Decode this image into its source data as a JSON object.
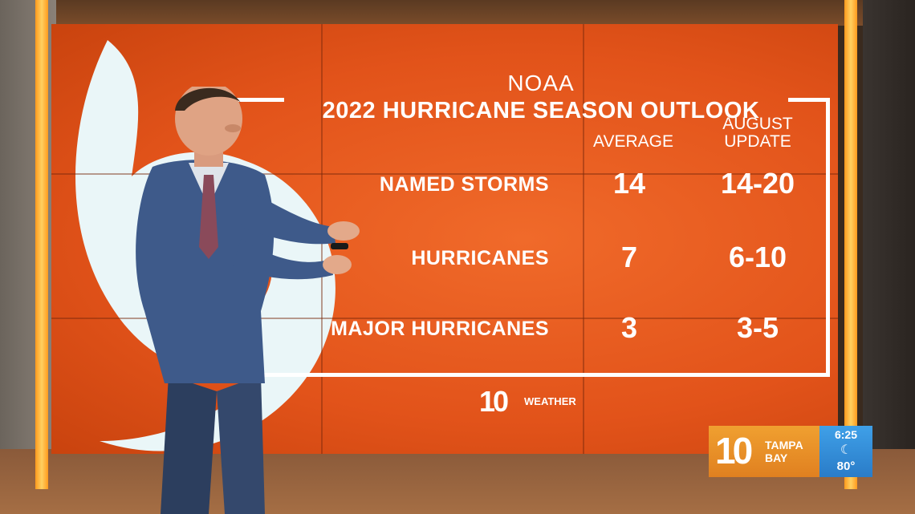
{
  "graphic": {
    "title_line1": "NOAA",
    "title_line2": "2022 HURRICANE SEASON OUTLOOK",
    "columns": [
      "AVERAGE",
      "AUGUST",
      "UPDATE"
    ],
    "rows": [
      {
        "label": "NAMED STORMS",
        "average": "14",
        "update": "14-20"
      },
      {
        "label": "HURRICANES",
        "average": "7",
        "update": "6-10"
      },
      {
        "label": "MAJOR HURRICANES",
        "average": "3",
        "update": "3-5"
      }
    ],
    "weather_logo_number": "10",
    "weather_logo_text": "WEATHER"
  },
  "bug": {
    "number": "10",
    "line1": "TAMPA",
    "line2": "BAY",
    "time": "6:25",
    "condition_icon": "moon-icon",
    "temperature": "80°"
  },
  "colors": {
    "wall_orange": "#e2531a",
    "bug_orange": "#f0a030",
    "bug_blue": "#3fa0e8"
  }
}
